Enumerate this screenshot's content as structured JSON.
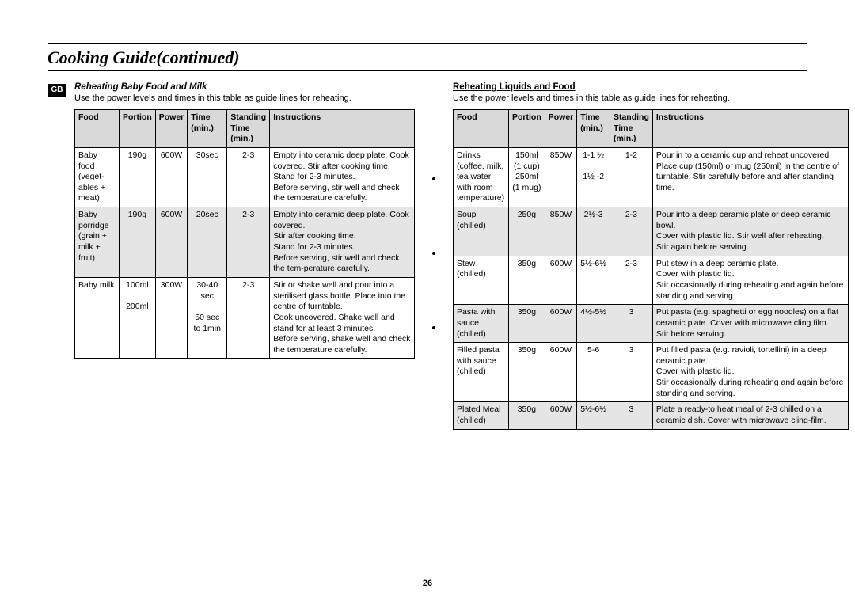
{
  "page_title": "Cooking Guide(continued)",
  "badge": "GB",
  "page_number": "26",
  "left": {
    "heading": "Reheating Baby Food and Milk",
    "intro": "Use the power levels and times in this table as guide lines for reheating.",
    "headers": {
      "food": "Food",
      "portion": "Portion",
      "power": "Power",
      "time": "Time (min.)",
      "standing": "Standing Time (min.)",
      "instructions": "Instructions"
    },
    "rows": [
      {
        "shade": false,
        "food": "Baby food (veget-ables + meat)",
        "portion": "190g",
        "power": "600W",
        "time": "30sec",
        "standing": "2-3",
        "instructions": "Empty into ceramic deep plate. Cook covered. Stir after cooking time.\nStand for 2-3 minutes.\nBefore serving, stir well and check the temperature carefully."
      },
      {
        "shade": true,
        "food": "Baby porridge (grain + milk + fruit)",
        "portion": "190g",
        "power": "600W",
        "time": "20sec",
        "standing": "2-3",
        "instructions": "Empty into ceramic deep plate. Cook covered.\nStir after cooking time.\nStand for 2-3 minutes.\nBefore serving, stir well and check the tem-perature carefully."
      },
      {
        "shade": false,
        "food": "Baby milk",
        "portion": "100ml\n\n200ml",
        "power": "300W",
        "time": "30-40 sec\n\n50 sec to 1min",
        "standing": "2-3",
        "instructions": "Stir or shake well and pour into a sterilised glass bottle. Place into the centre of turntable.\nCook uncovered. Shake well and stand for at least 3 minutes.\nBefore serving, shake well and check the temperature carefully."
      }
    ]
  },
  "right": {
    "heading": "Reheating Liquids and Food",
    "intro": "Use the power levels and times in this table as guide lines for reheating.",
    "headers": {
      "food": "Food",
      "portion": "Portion",
      "power": "Power",
      "time": "Time (min.)",
      "standing": "Standing Time (min.)",
      "instructions": "Instructions"
    },
    "rows": [
      {
        "shade": false,
        "food": "Drinks (coffee, milk, tea water with room temperature)",
        "portion": "150ml (1 cup) 250ml (1 mug)",
        "power": "850W",
        "time": "1-1 ½\n\n1½ -2",
        "standing": "1-2",
        "instructions": "Pour in to a ceramic cup and reheat uncovered. Place cup (150ml) or mug (250ml) in the centre of turntable, Stir carefully before and after standing time."
      },
      {
        "shade": true,
        "food": "Soup (chilled)",
        "portion": "250g",
        "power": "850W",
        "time": "2½-3",
        "standing": "2-3",
        "instructions": "Pour into a deep ceramic plate or deep ceramic bowl.\nCover with plastic lid. Stir well after reheating.\nStir again before serving."
      },
      {
        "shade": false,
        "food": "Stew (chilled)",
        "portion": "350g",
        "power": "600W",
        "time": "5½-6½",
        "standing": "2-3",
        "instructions": "Put stew in a deep ceramic plate.\nCover with plastic lid.\nStir occasionally during reheating and again before standing and serving."
      },
      {
        "shade": true,
        "food": "Pasta with sauce (chilled)",
        "portion": "350g",
        "power": "600W",
        "time": "4½-5½",
        "standing": "3",
        "instructions": "Put pasta (e.g. spaghetti or egg noodles) on a flat ceramic plate. Cover with microwave cling film.\nStir before serving."
      },
      {
        "shade": false,
        "food": "Filled pasta with sauce (chilled)",
        "portion": "350g",
        "power": "600W",
        "time": "5-6",
        "standing": "3",
        "instructions": "Put filled pasta (e.g. ravioli, tortellini) in a deep ceramic plate.\nCover with plastic lid.\nStir occasionally during reheating and again before standing and serving."
      },
      {
        "shade": true,
        "food": "Plated Meal (chilled)",
        "portion": "350g",
        "power": "600W",
        "time": "5½-6½",
        "standing": "3",
        "instructions": "Plate a ready-to heat meal of 2-3 chilled on a ceramic dish. Cover with microwave cling-film."
      }
    ]
  }
}
